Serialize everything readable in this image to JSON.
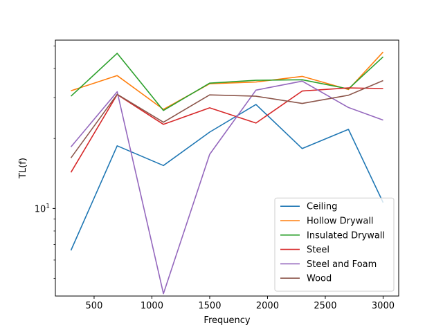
{
  "chart_data": {
    "type": "line",
    "title": "",
    "xlabel": "Frequency",
    "ylabel": "TL(f)",
    "yscale": "log",
    "xlim": [
      165,
      3135
    ],
    "ylim": [
      4.2,
      53
    ],
    "x_ticks": [
      500,
      1000,
      1500,
      2000,
      2500,
      3000
    ],
    "x_tick_labels": [
      "500",
      "1000",
      "1500",
      "2000",
      "2500",
      "3000"
    ],
    "y_major_ticks": [
      10
    ],
    "y_major_tick_labels": [
      "10^1"
    ],
    "y_minor_ticks": [
      5,
      6,
      7,
      8,
      9,
      20,
      30,
      40,
      50
    ],
    "grid": false,
    "legend": "lower-right",
    "x": [
      300,
      700,
      1100,
      1500,
      1900,
      2300,
      2700,
      3000
    ],
    "series": [
      {
        "name": "Ceiling",
        "color": "#1f77b4",
        "values": [
          6.6,
          18.6,
          15.3,
          21.3,
          28.0,
          18.1,
          21.9,
          10.6
        ]
      },
      {
        "name": "Hollow Drywall",
        "color": "#ff7f0e",
        "values": [
          32.1,
          37.3,
          26.7,
          34.4,
          35.0,
          37.0,
          32.5,
          47.1
        ]
      },
      {
        "name": "Insulated Drywall",
        "color": "#2ca02c",
        "values": [
          30.4,
          46.5,
          26.4,
          34.6,
          35.6,
          35.8,
          32.7,
          44.9
        ]
      },
      {
        "name": "Steel",
        "color": "#d62728",
        "values": [
          14.3,
          30.9,
          23.0,
          27.1,
          23.3,
          32.0,
          33.0,
          32.8
        ]
      },
      {
        "name": "Steel and Foam",
        "color": "#9467bd",
        "values": [
          18.4,
          31.8,
          4.3,
          17.1,
          32.3,
          35.3,
          27.2,
          24.0
        ]
      },
      {
        "name": "Wood",
        "color": "#8c564b",
        "values": [
          16.5,
          31.0,
          23.5,
          30.8,
          30.4,
          28.3,
          30.7,
          35.5
        ]
      }
    ]
  }
}
